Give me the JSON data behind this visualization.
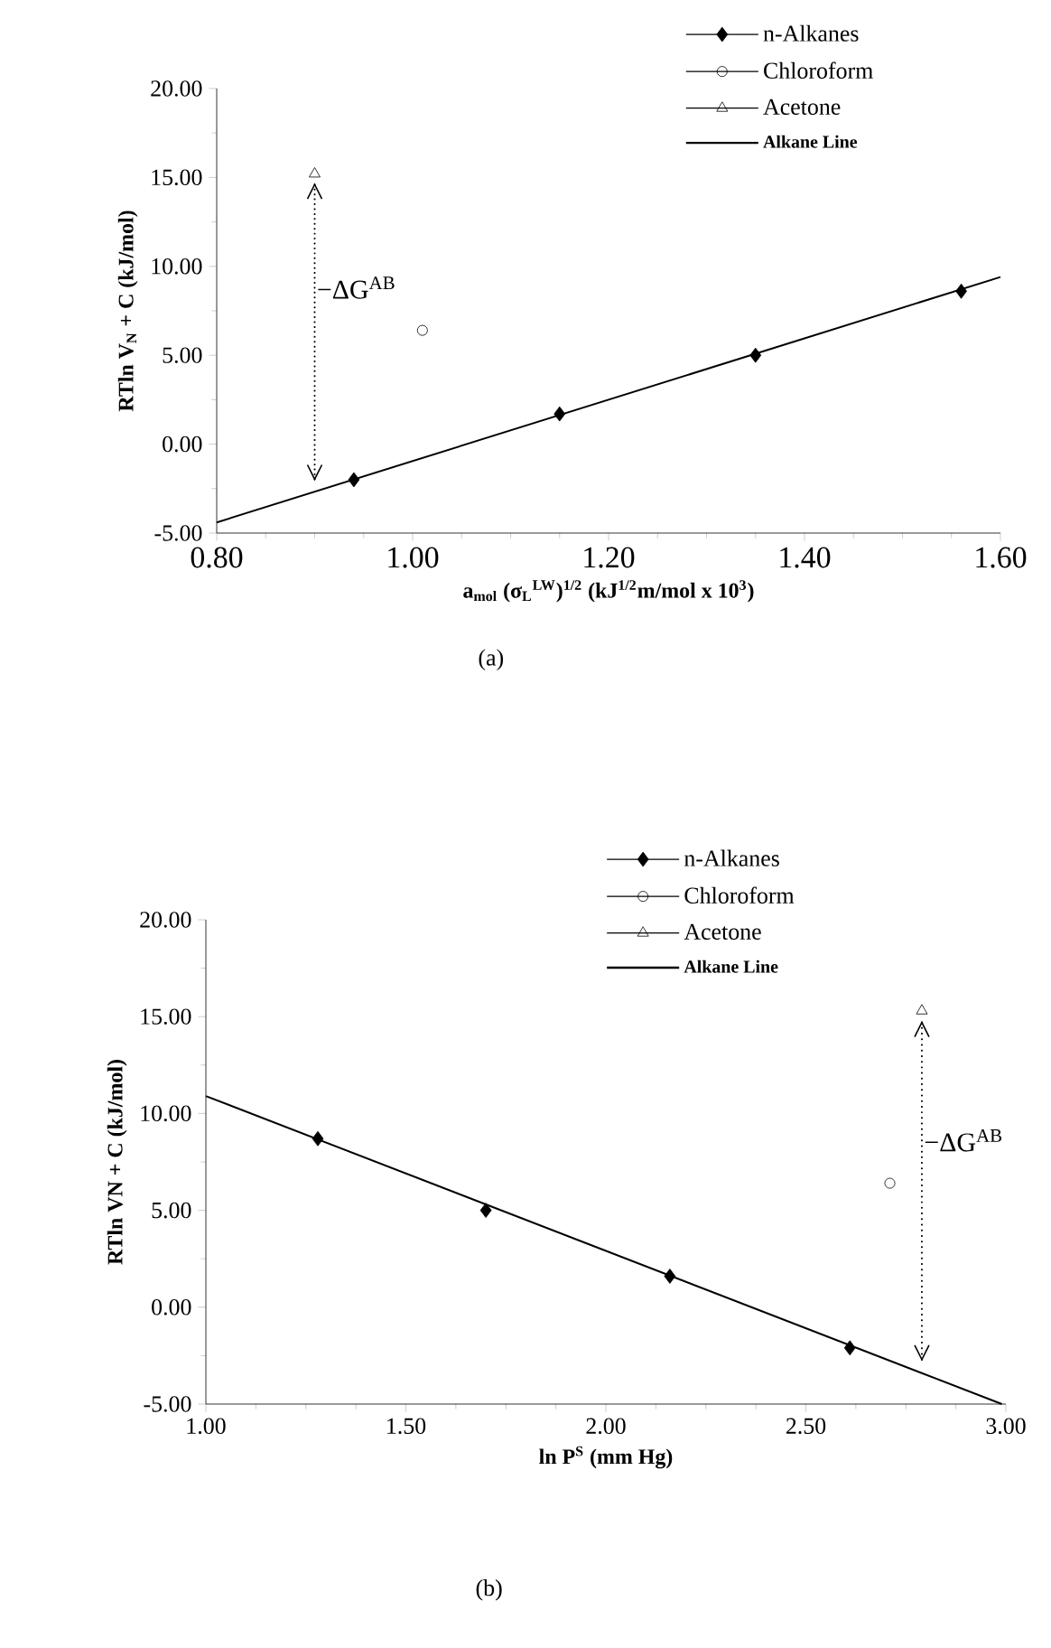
{
  "chart_data": [
    {
      "type": "scatter",
      "xlabel": "a$_{mol}$ (σ$_{L}$$^{LW}$)$^{1/2}$   (kJ$^{1/2}$m/mol x 10$^{3}$)",
      "ylabel": "RTln V$_{N}$ + C  (kJ/mol)",
      "xlim": [
        0.8,
        1.6
      ],
      "ylim": [
        -5,
        20
      ],
      "xticks": [
        {
          "value": 0.8,
          "label": "0.80"
        },
        {
          "value": 1.0,
          "label": "1.00"
        },
        {
          "value": 1.2,
          "label": "1.20"
        },
        {
          "value": 1.4,
          "label": "1.40"
        },
        {
          "value": 1.6,
          "label": "1.60"
        }
      ],
      "yticks": [
        {
          "value": -5,
          "label": "-5.00"
        },
        {
          "value": 0,
          "label": "0.00"
        },
        {
          "value": 5,
          "label": "5.00"
        },
        {
          "value": 10,
          "label": "10.00"
        },
        {
          "value": 15,
          "label": "15.00"
        },
        {
          "value": 20,
          "label": "20.00"
        }
      ],
      "grid": false,
      "legend": "top right",
      "series": [
        {
          "name": "n-Alkanes",
          "color": "#000000",
          "marker": "diamond",
          "x": [
            0.94,
            1.15,
            1.35,
            1.56
          ],
          "values": [
            -2.0,
            1.7,
            5.0,
            8.6
          ]
        },
        {
          "name": "Chloroform",
          "color": "#000000",
          "marker": "circle",
          "x": [
            1.01
          ],
          "values": [
            6.4
          ]
        },
        {
          "name": "Acetone",
          "color": "#000000",
          "marker": "triangle",
          "x": [
            0.9
          ],
          "values": [
            15.2
          ]
        },
        {
          "name": "Alkane Line",
          "type": "line",
          "color": "#000000",
          "marker": "none",
          "x": [
            0.8,
            1.6
          ],
          "values": [
            -4.4,
            9.4
          ]
        }
      ],
      "annotations": [
        "−ΔG$^{AB}$",
        "(a)"
      ]
    },
    {
      "type": "scatter",
      "xlabel": "ln P$^{S}$ (mm Hg)",
      "ylabel": "RTln VN + C  (kJ/mol)",
      "xlim": [
        1.0,
        3.0
      ],
      "ylim": [
        -5,
        20
      ],
      "xticks": [
        {
          "value": 1.0,
          "label": "1.00"
        },
        {
          "value": 1.5,
          "label": "1.50"
        },
        {
          "value": 2.0,
          "label": "2.00"
        },
        {
          "value": 2.5,
          "label": "2.50"
        },
        {
          "value": 3.0,
          "label": "3.00"
        }
      ],
      "yticks": [
        {
          "value": -5,
          "label": "-5.00"
        },
        {
          "value": 0,
          "label": "0.00"
        },
        {
          "value": 5,
          "label": "5.00"
        },
        {
          "value": 10,
          "label": "10.00"
        },
        {
          "value": 15,
          "label": "15.00"
        },
        {
          "value": 20,
          "label": "20.00"
        }
      ],
      "grid": false,
      "legend": "top right",
      "series": [
        {
          "name": "n-Alkanes",
          "color": "#000000",
          "marker": "diamond",
          "x": [
            1.28,
            1.7,
            2.16,
            2.61
          ],
          "values": [
            8.7,
            5.0,
            1.6,
            -2.1
          ]
        },
        {
          "name": "Chloroform",
          "color": "#000000",
          "marker": "circle",
          "x": [
            2.71
          ],
          "values": [
            6.4
          ]
        },
        {
          "name": "Acetone",
          "color": "#000000",
          "marker": "triangle",
          "x": [
            2.79
          ],
          "values": [
            15.3
          ]
        },
        {
          "name": "Alkane Line",
          "type": "line",
          "color": "#000000",
          "marker": "none",
          "x": [
            1.0,
            2.99
          ],
          "values": [
            10.9,
            -5.0
          ]
        }
      ],
      "annotations": [
        "−ΔG$^{AB}$",
        "(b)"
      ]
    }
  ]
}
